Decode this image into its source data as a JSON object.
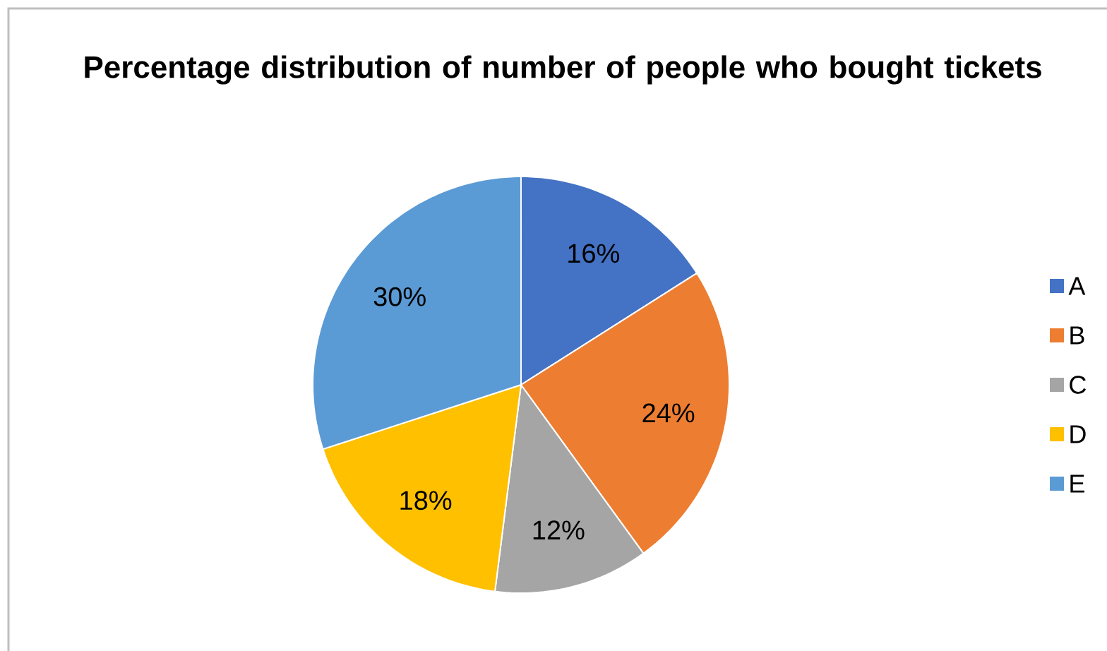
{
  "chart_data": {
    "type": "pie",
    "title": "Percentage distribution  of number of people who bought tickets",
    "categories": [
      "A",
      "B",
      "C",
      "D",
      "E"
    ],
    "values": [
      16,
      24,
      12,
      18,
      30
    ],
    "colors": [
      "#4472c4",
      "#ed7d31",
      "#a5a5a5",
      "#ffc000",
      "#5b9bd5"
    ],
    "value_labels": [
      "16%",
      "24%",
      "12%",
      "18%",
      "30%"
    ],
    "legend": "right"
  }
}
